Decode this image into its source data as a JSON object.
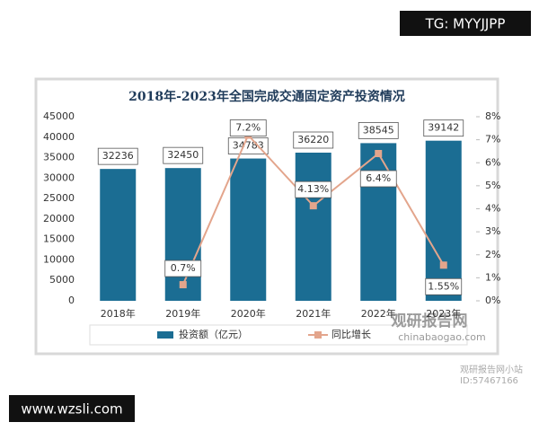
{
  "chart_data": {
    "type": "bar",
    "title": "2018年-2023年全国完成交通固定资产投资情况",
    "categories": [
      "2018年",
      "2019年",
      "2020年",
      "2021年",
      "2022年",
      "2023年"
    ],
    "series": [
      {
        "name": "投资额（亿元）",
        "type": "bar",
        "color": "#1b6d93",
        "values": [
          32236,
          32450,
          34783,
          36220,
          38545,
          39142
        ]
      },
      {
        "name": "同比增长",
        "type": "line",
        "axis": "y2",
        "color": "#e3a58c",
        "values": [
          null,
          0.7,
          7.2,
          4.13,
          6.4,
          1.55
        ],
        "value_labels": [
          null,
          "0.7%",
          "7.2%",
          "4.13%",
          "6.4%",
          "1.55%"
        ]
      }
    ],
    "ylim": [
      0,
      45000
    ],
    "yticks": [
      0,
      5000,
      10000,
      15000,
      20000,
      25000,
      30000,
      35000,
      40000,
      45000
    ],
    "y2lim": [
      0,
      8
    ],
    "y2ticks": [
      {
        "value": 0,
        "label": "0%"
      },
      {
        "value": 1,
        "label": "1%"
      },
      {
        "value": 2,
        "label": "2%"
      },
      {
        "value": 3,
        "label": "3%"
      },
      {
        "value": 4,
        "label": "4%"
      },
      {
        "value": 5,
        "label": "5%"
      },
      {
        "value": 6,
        "label": "6%"
      },
      {
        "value": 7,
        "label": "7%"
      },
      {
        "value": 8,
        "label": "8%"
      }
    ],
    "grid": false,
    "legend": "bottom"
  },
  "watermarks": {
    "top": "TG: MYYJJPP",
    "bottom": "www.wzsli.com",
    "brand": "观研报告网",
    "brand_url": "chinabaogao.com",
    "corner": "观研报告网小站",
    "corner_id": "ID:57467166"
  }
}
